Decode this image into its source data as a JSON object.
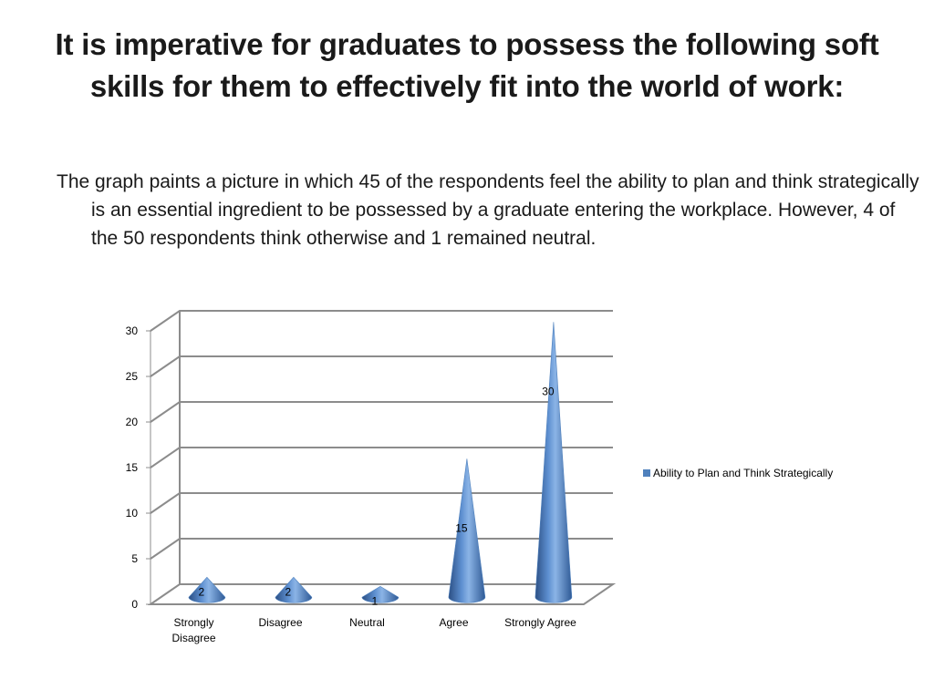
{
  "slide": {
    "title": "It is imperative for graduates to possess the following soft skills for them to effectively fit into the world of work:",
    "body": "The graph paints a picture in which 45 of the respondents feel the ability to plan and think strategically is an essential ingredient to be possessed by a graduate entering the workplace. However, 4 of the 50 respondents think otherwise and 1 remained neutral."
  },
  "chart_data": {
    "type": "bar",
    "bar_shape": "cone-3d",
    "categories": [
      "Strongly Disagree",
      "Disagree",
      "Neutral",
      "Agree",
      "Strongly Agree"
    ],
    "series": [
      {
        "name": "Ability to Plan and Think Strategically",
        "values": [
          2,
          2,
          1,
          15,
          30
        ]
      }
    ],
    "data_labels": [
      "2",
      "2",
      "1",
      "15",
      "30"
    ],
    "yticks": [
      0,
      5,
      10,
      15,
      20,
      25,
      30
    ],
    "ylim": [
      0,
      30
    ],
    "grid": true,
    "legend_position": "right",
    "colors": {
      "series": "#4f81bd",
      "grid": "#8c8c8c"
    }
  }
}
